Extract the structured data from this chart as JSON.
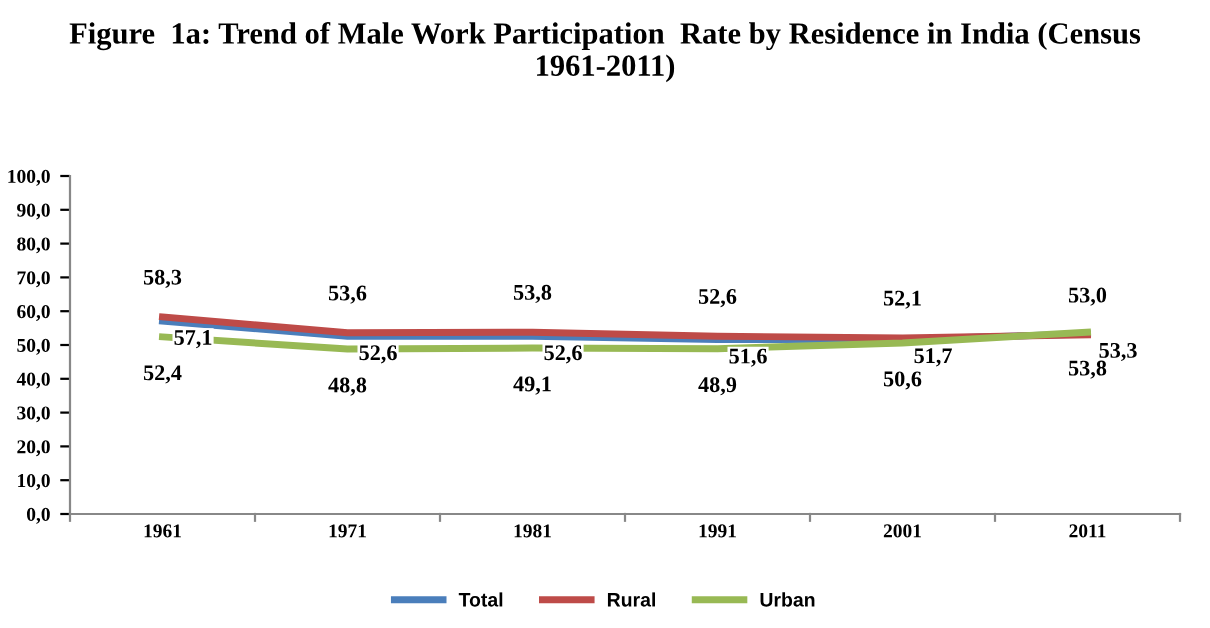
{
  "chart_data": {
    "type": "line",
    "title": "Figure  1a: Trend of Male Work Participation  Rate by Residence in India (Census 1961-2011)",
    "categories": [
      "1961",
      "1971",
      "1981",
      "1991",
      "2001",
      "2011"
    ],
    "series": [
      {
        "name": "Total",
        "color": "#4a7ebb",
        "values": [
          57.1,
          52.6,
          52.6,
          51.6,
          51.7,
          53.3
        ],
        "value_labels": [
          "57,1",
          "52,6",
          "52,6",
          "51,6",
          "51,7",
          "53,3"
        ]
      },
      {
        "name": "Rural",
        "color": "#be4b48",
        "values": [
          58.3,
          53.6,
          53.8,
          52.6,
          52.1,
          53.0
        ],
        "value_labels": [
          "58,3",
          "53,6",
          "53,8",
          "52,6",
          "52,1",
          "53,0"
        ]
      },
      {
        "name": "Urban",
        "color": "#98b954",
        "values": [
          52.4,
          48.8,
          49.1,
          48.9,
          50.6,
          53.8
        ],
        "value_labels": [
          "52,4",
          "48,8",
          "49,1",
          "48,9",
          "50,6",
          "53,8"
        ]
      }
    ],
    "ylim": [
      0,
      100
    ],
    "yticks": [
      {
        "value": 0,
        "label": "0,0"
      },
      {
        "value": 10,
        "label": "10,0"
      },
      {
        "value": 20,
        "label": "20,0"
      },
      {
        "value": 30,
        "label": "30,0"
      },
      {
        "value": 40,
        "label": "40,0"
      },
      {
        "value": 50,
        "label": "50,0"
      },
      {
        "value": 60,
        "label": "60,0"
      },
      {
        "value": 70,
        "label": "70,0"
      },
      {
        "value": 80,
        "label": "80,0"
      },
      {
        "value": 90,
        "label": "90,0"
      },
      {
        "value": 100,
        "label": "100,0"
      }
    ],
    "grid": false,
    "legend": "bottom",
    "marker": "none",
    "line_style": "solid"
  }
}
